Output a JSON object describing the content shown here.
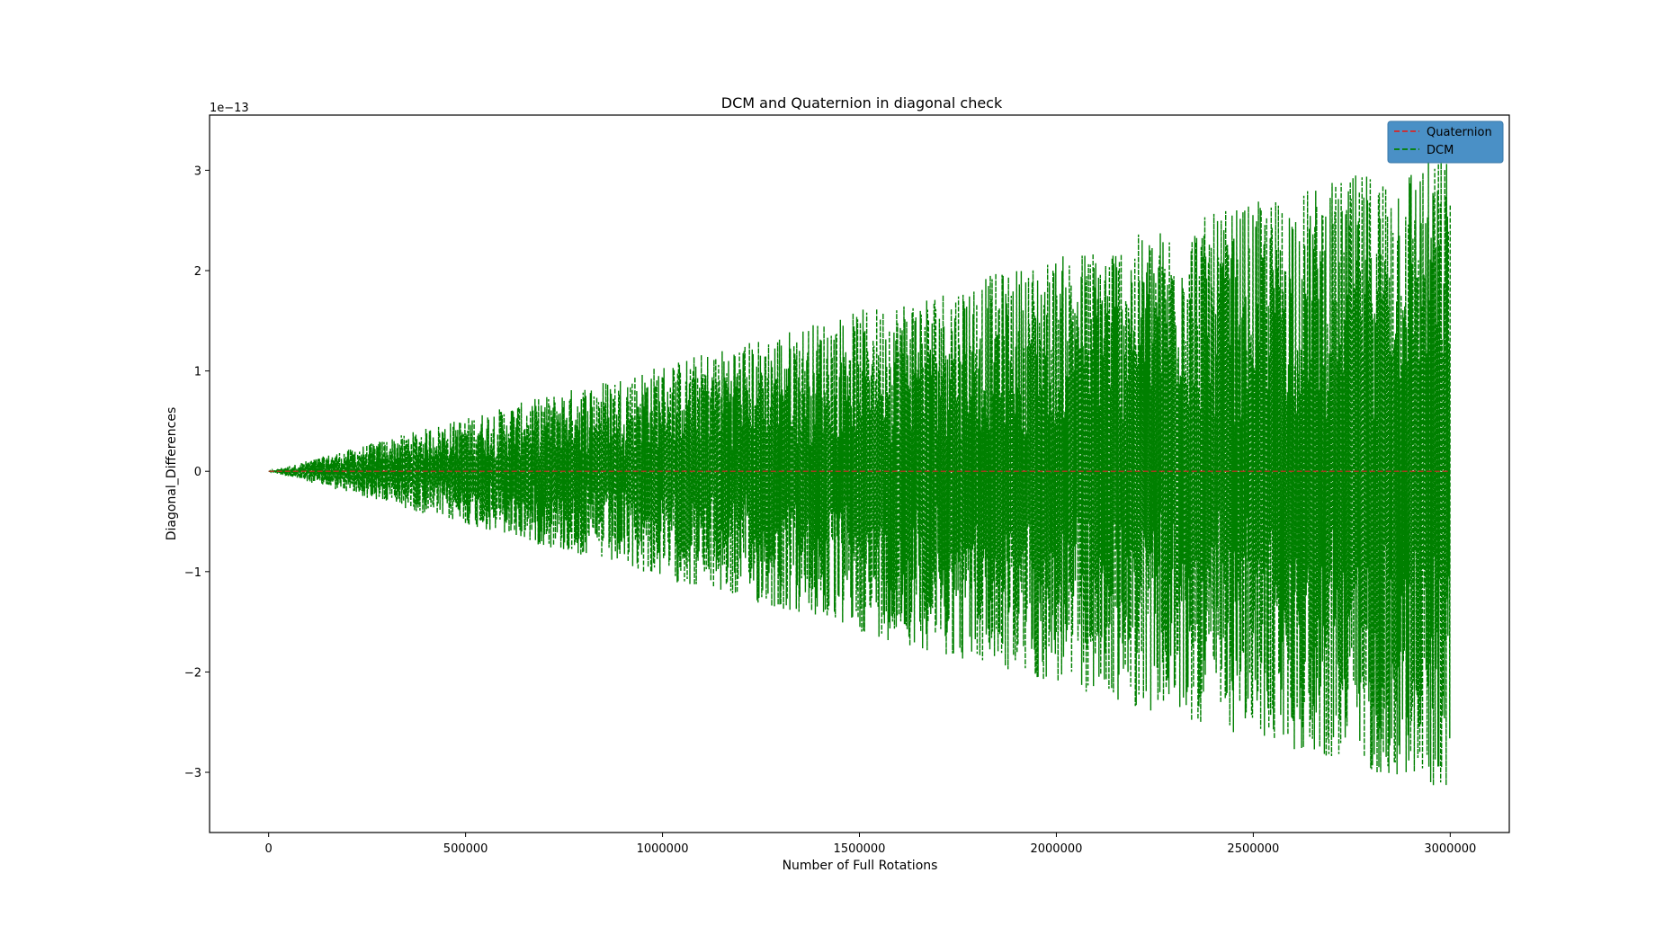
{
  "chart_data": {
    "type": "line",
    "title": "DCM and Quaternion in diagonal check",
    "xlabel": "Number of Full Rotations",
    "ylabel": "Diagonal_Differences",
    "y_offset_label": "1e−13",
    "xlim": [
      -150000,
      3150000
    ],
    "ylim": [
      -3.6,
      3.55
    ],
    "y_scale_factor": 1e-13,
    "xticks": [
      0,
      500000,
      1000000,
      1500000,
      2000000,
      2500000,
      3000000
    ],
    "xtick_labels": [
      "0",
      "500000",
      "1000000",
      "1500000",
      "2000000",
      "2500000",
      "3000000"
    ],
    "yticks": [
      -3,
      -2,
      -1,
      0,
      1,
      2,
      3
    ],
    "ytick_labels": [
      "−3",
      "−2",
      "−1",
      "0",
      "1",
      "2",
      "3"
    ],
    "grid": false,
    "legend_position": "top-right",
    "series": [
      {
        "name": "Quaternion",
        "color": "#d62728",
        "linestyle": "dashed",
        "x": [
          0,
          500000,
          1000000,
          1500000,
          2000000,
          2500000,
          3000000
        ],
        "y": [
          0,
          0,
          0,
          0,
          0,
          0,
          0
        ]
      },
      {
        "name": "DCM",
        "color": "#008000",
        "linestyle": "dashed",
        "x": [
          0,
          60000,
          120000,
          180000,
          240000,
          300000,
          360000,
          420000,
          480000,
          540000,
          600000,
          660000,
          720000,
          780000,
          840000,
          900000,
          960000,
          1020000,
          1080000,
          1140000,
          1200000,
          1260000,
          1320000,
          1380000,
          1440000,
          1500000,
          1560000,
          1620000,
          1680000,
          1740000,
          1800000,
          1860000,
          1920000,
          1980000,
          2040000,
          2100000,
          2160000,
          2220000,
          2280000,
          2340000,
          2400000,
          2460000,
          2520000,
          2580000,
          2640000,
          2700000,
          2760000,
          2820000,
          2880000,
          2940000,
          3000000
        ],
        "y": [
          0,
          0.06,
          -0.12,
          0.18,
          -0.24,
          0.3,
          -0.36,
          0.42,
          -0.48,
          0.54,
          -0.6,
          0.66,
          -0.72,
          0.78,
          -0.84,
          0.9,
          -0.96,
          1.02,
          -1.08,
          1.14,
          -1.2,
          1.26,
          -1.32,
          1.38,
          -1.44,
          1.5,
          -1.56,
          1.62,
          -1.68,
          1.74,
          -1.8,
          1.86,
          -1.92,
          1.98,
          -2.04,
          2.1,
          -2.16,
          2.22,
          -2.28,
          2.34,
          -2.4,
          2.46,
          -2.52,
          2.58,
          -2.64,
          2.7,
          -2.76,
          2.82,
          -2.88,
          2.94,
          -3.0
        ]
      }
    ]
  }
}
